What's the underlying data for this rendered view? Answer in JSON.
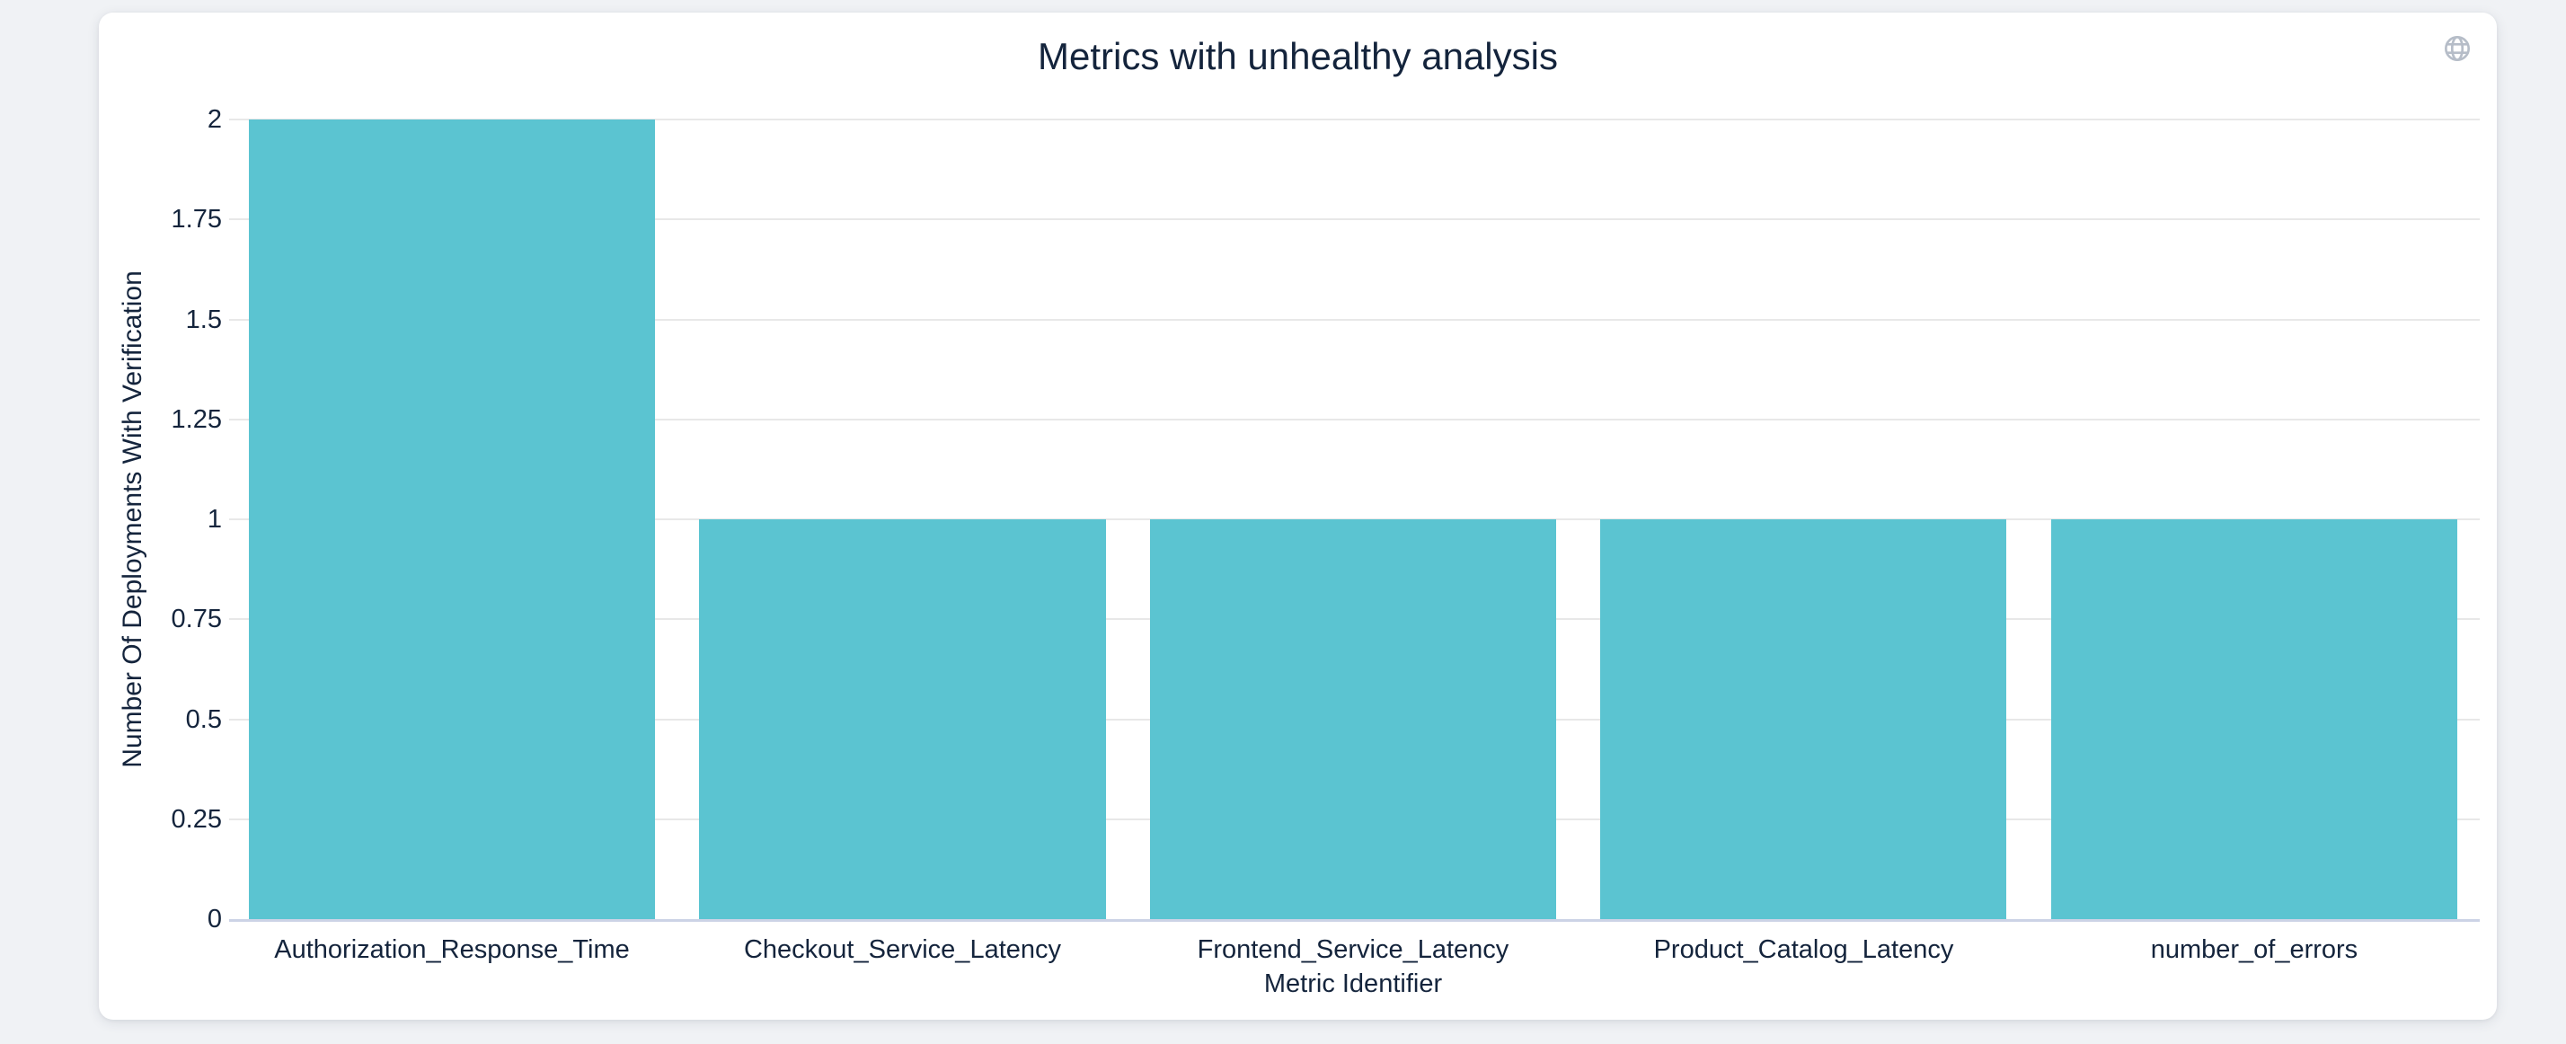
{
  "colors": {
    "page_bg": "#f0f2f5",
    "card_bg": "#ffffff",
    "text": "#14243c",
    "grid": "#e8e8e8",
    "axis_line": "#ccd3e6",
    "bar": "#5bc4d1",
    "icon": "#b6bdc8"
  },
  "icons": {
    "top_right": "globe-icon"
  },
  "chart_data": {
    "type": "bar",
    "title": "Metrics with unhealthy analysis",
    "xlabel": "Metric Identifier",
    "ylabel": "Number Of Deployments With Verification",
    "categories": [
      "Authorization_Response_Time",
      "Checkout_Service_Latency",
      "Frontend_Service_Latency",
      "Product_Catalog_Latency",
      "number_of_errors"
    ],
    "values": [
      2,
      1,
      1,
      1,
      1
    ],
    "ylim": [
      0,
      2
    ],
    "yticks": [
      0,
      0.25,
      0.5,
      0.75,
      1,
      1.25,
      1.5,
      1.75,
      2
    ],
    "ytick_labels": [
      "0",
      "0.25",
      "0.5",
      "0.75",
      "1",
      "1.25",
      "1.5",
      "1.75",
      "2"
    ],
    "grid": "horizontal",
    "legend": "none"
  }
}
